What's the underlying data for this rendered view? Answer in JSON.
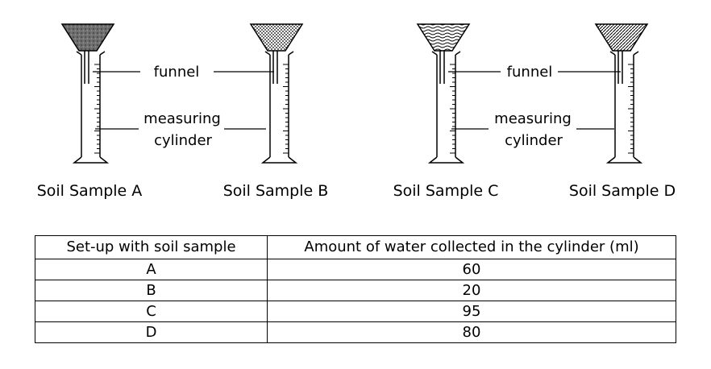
{
  "setups": [
    {
      "caption": "Soil Sample A",
      "fill": "dark-speckled"
    },
    {
      "caption": "Soil Sample B",
      "fill": "dotted"
    },
    {
      "caption": "Soil Sample C",
      "fill": "wavy"
    },
    {
      "caption": "Soil Sample D",
      "fill": "hatched"
    }
  ],
  "labels": {
    "funnel": "funnel",
    "measuring_line1": "measuring",
    "measuring_line2": "cylinder"
  },
  "table": {
    "headers": [
      "Set-up with soil sample",
      "Amount of water collected in the cylinder (ml)"
    ],
    "rows": [
      {
        "setup": "A",
        "amount": "60"
      },
      {
        "setup": "B",
        "amount": "20"
      },
      {
        "setup": "C",
        "amount": "95"
      },
      {
        "setup": "D",
        "amount": "80"
      }
    ]
  }
}
